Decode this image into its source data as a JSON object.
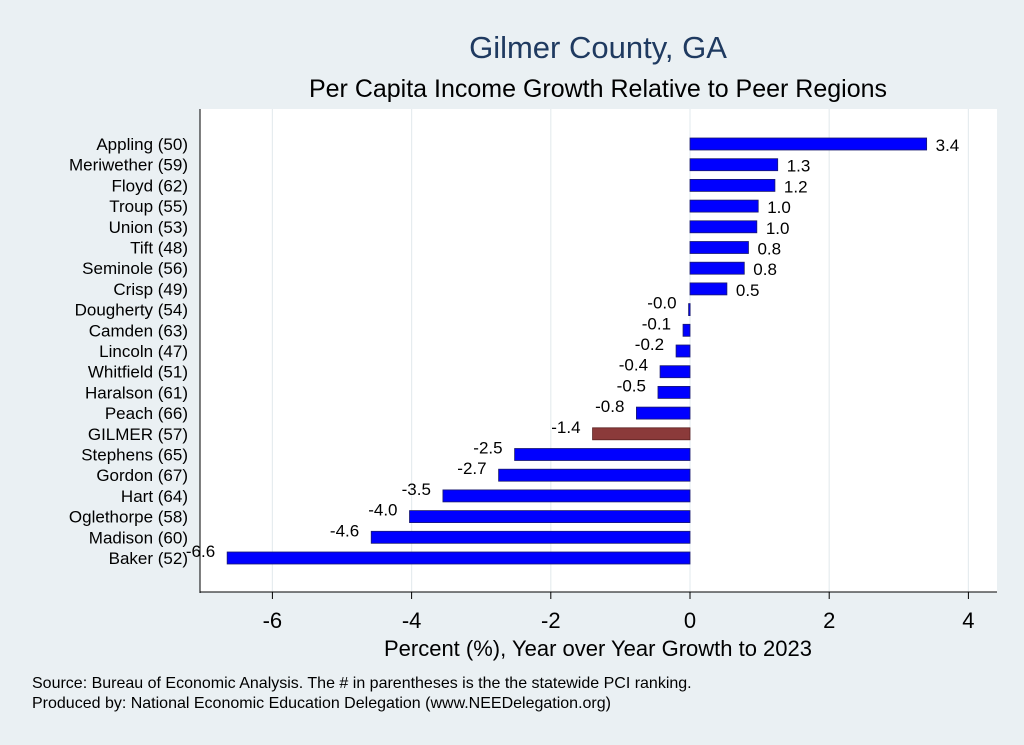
{
  "chart_data": {
    "type": "bar",
    "orientation": "horizontal",
    "title": "Gilmer County, GA",
    "subtitle": "Per Capita Income Growth Relative to Peer Regions",
    "xlabel": "Percent (%), Year over Year Growth to 2023",
    "ylabel": "",
    "xlim": [
      -7,
      4.4
    ],
    "xticks": [
      -6,
      -4,
      -2,
      0,
      2,
      4
    ],
    "xtick_labels": [
      "-6",
      "-4",
      "-2",
      "0",
      "2",
      "4"
    ],
    "grid": "vertical",
    "categories": [
      "Appling (50)",
      "Meriwether (59)",
      "Floyd (62)",
      "Troup (55)",
      "Union (53)",
      "Tift (48)",
      "Seminole (56)",
      "Crisp (49)",
      "Dougherty (54)",
      "Camden (63)",
      "Lincoln (47)",
      "Whitfield (51)",
      "Haralson (61)",
      "Peach (66)",
      "GILMER (57)",
      "Stephens (65)",
      "Gordon (67)",
      "Hart (64)",
      "Oglethorpe (58)",
      "Madison (60)",
      "Baker (52)"
    ],
    "values": [
      3.4,
      1.26,
      1.22,
      0.98,
      0.96,
      0.84,
      0.78,
      0.53,
      -0.02,
      -0.1,
      -0.2,
      -0.43,
      -0.46,
      -0.77,
      -1.4,
      -2.52,
      -2.75,
      -3.55,
      -4.03,
      -4.58,
      -6.65
    ],
    "value_labels": [
      "3.4",
      "1.3",
      "1.2",
      "1.0",
      "1.0",
      "0.8",
      "0.8",
      "0.5",
      "-0.0",
      "-0.1",
      "-0.2",
      "-0.4",
      "-0.5",
      "-0.8",
      "-1.4",
      "-2.5",
      "-2.7",
      "-3.5",
      "-4.0",
      "-4.6",
      "-6.6"
    ],
    "highlight_category": "GILMER (57)",
    "colors": {
      "bar": "#0000ff",
      "highlight": "#8b3a3a",
      "background": "#eaf0f3",
      "plot_background": "#ffffff",
      "title": "#1f3a60"
    }
  },
  "footnotes": [
    "Source: Bureau of Economic Analysis. The # in parentheses is the the statewide PCI ranking.",
    "Produced by: National Economic Education Delegation (www.NEEDelegation.org)"
  ]
}
